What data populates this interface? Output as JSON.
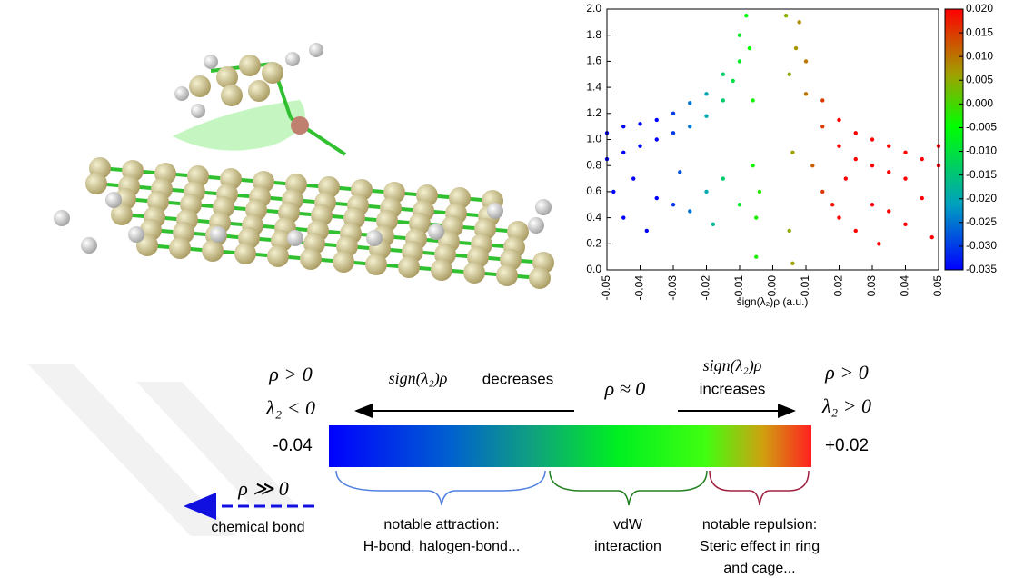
{
  "chart_data": {
    "type": "scatter",
    "xlabel": "sign(λ₂)ρ (a.u.)",
    "xlim": [
      -0.05,
      0.05
    ],
    "xticks": [
      -0.05,
      -0.04,
      -0.03,
      -0.02,
      -0.01,
      {
        "value": 0,
        "label": "0.00"
      },
      0.01,
      0.02,
      0.03,
      0.04,
      0.05
    ],
    "ylim": [
      0,
      2
    ],
    "yticks": [
      {
        "value": 0,
        "label": "0.0"
      },
      0.2,
      0.4,
      0.6,
      0.8,
      {
        "value": 1,
        "label": "1.0"
      },
      1.2,
      1.4,
      1.6,
      1.8,
      {
        "value": 2,
        "label": "2.0"
      }
    ],
    "colormap": [
      "#0000ff",
      "#00a0c0",
      "#00ff00",
      "#a0a000",
      "#ff0000"
    ],
    "clim": [
      -0.035,
      0.02
    ],
    "cticks": [
      {
        "value": 0.02,
        "label": "0.020"
      },
      0.015,
      {
        "value": 0.01,
        "label": "0.010"
      },
      0.005,
      {
        "value": 0,
        "label": "0.000"
      },
      -0.005,
      {
        "value": -0.01,
        "label": "-0.010"
      },
      -0.015,
      {
        "value": -0.02,
        "label": "-0.020"
      },
      -0.025,
      {
        "value": -0.03,
        "label": "-0.030"
      },
      -0.035
    ],
    "x": [
      -0.05,
      -0.05,
      -0.045,
      -0.045,
      -0.04,
      -0.04,
      -0.035,
      -0.035,
      -0.03,
      -0.03,
      -0.025,
      -0.025,
      -0.02,
      -0.02,
      -0.015,
      -0.015,
      -0.012,
      -0.01,
      -0.01,
      -0.008,
      -0.007,
      -0.006,
      -0.006,
      -0.005,
      -0.005,
      -0.004,
      -0.048,
      -0.045,
      -0.042,
      -0.038,
      -0.035,
      -0.03,
      -0.028,
      -0.025,
      -0.02,
      -0.018,
      -0.015,
      -0.01,
      0.004,
      0.005,
      0.005,
      0.006,
      0.006,
      0.007,
      0.008,
      0.01,
      0.01,
      0.015,
      0.015,
      0.02,
      0.02,
      0.025,
      0.025,
      0.03,
      0.03,
      0.035,
      0.035,
      0.04,
      0.04,
      0.045,
      0.05,
      0.05,
      0.015,
      0.02,
      0.022,
      0.025,
      0.03,
      0.032,
      0.035,
      0.04,
      0.045,
      0.048,
      0.012,
      0.018
    ],
    "y": [
      0.85,
      1.05,
      0.9,
      1.1,
      0.95,
      1.12,
      1.0,
      1.15,
      1.05,
      1.2,
      1.1,
      1.28,
      1.18,
      1.35,
      1.3,
      1.5,
      1.45,
      1.6,
      1.8,
      1.95,
      1.7,
      1.3,
      0.8,
      0.4,
      0.1,
      0.6,
      0.6,
      0.4,
      0.7,
      0.3,
      0.55,
      0.5,
      0.75,
      0.45,
      0.6,
      0.35,
      0.7,
      0.5,
      1.95,
      1.5,
      0.3,
      0.05,
      0.9,
      1.7,
      1.9,
      1.6,
      1.35,
      1.3,
      1.1,
      1.15,
      0.95,
      1.05,
      0.85,
      1.0,
      0.8,
      0.95,
      0.75,
      0.9,
      0.7,
      0.85,
      0.8,
      0.95,
      0.6,
      0.4,
      0.7,
      0.3,
      0.5,
      0.2,
      0.45,
      0.35,
      0.55,
      0.25,
      0.8,
      0.5
    ]
  },
  "diagram": {
    "left_rho": "ρ > 0",
    "left_lambda": "λ₂ < 0",
    "decreases_expr": "sign(λ₂)ρ",
    "decreases_word": "decreases",
    "middle": "ρ ≈ 0",
    "increases_expr": "sign(λ₂)ρ",
    "increases_word": "increases",
    "right_rho": "ρ > 0",
    "right_lambda": "λ₂ > 0",
    "left_value": "-0.04",
    "right_value": "+0.02",
    "bond_rho": "ρ ≫ 0",
    "bond_label": "chemical bond",
    "attraction": [
      "notable attraction:",
      "H-bond, halogen-bond..."
    ],
    "vdw": [
      "vdW",
      "interaction"
    ],
    "repulsion": [
      "notable repulsion:",
      "Steric effect in ring",
      "and cage..."
    ]
  }
}
